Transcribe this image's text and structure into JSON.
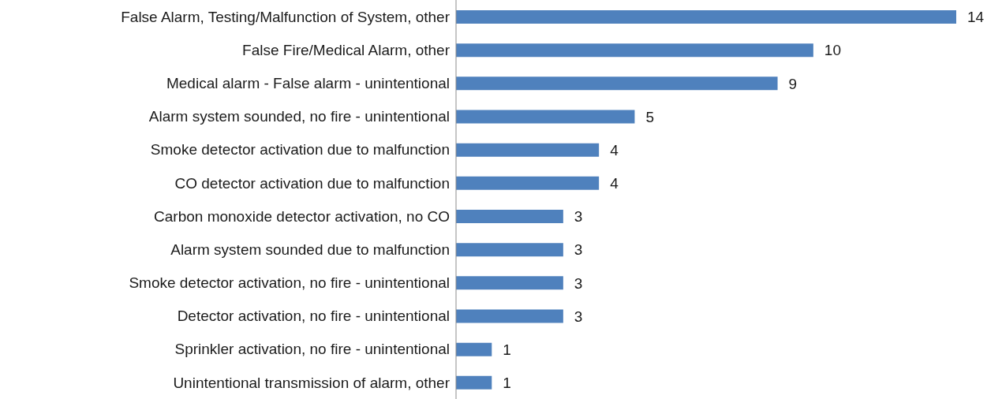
{
  "chart_data": {
    "type": "bar",
    "orientation": "horizontal",
    "data_labels": true,
    "color": "#4f81bd",
    "categories": [
      "False Alarm, Testing/Malfunction of System, other",
      "False Fire/Medical Alarm, other",
      "Medical alarm - False alarm - unintentional",
      "Alarm system sounded, no fire - unintentional",
      "Smoke detector activation due to malfunction",
      "CO detector activation due to malfunction",
      "Carbon monoxide detector activation, no CO",
      "Alarm system sounded due to malfunction",
      "Smoke detector activation, no fire - unintentional",
      "Detector activation, no fire - unintentional",
      "Sprinkler activation, no fire - unintentional",
      "Unintentional transmission of alarm, other"
    ],
    "values": [
      14,
      10,
      9,
      5,
      4,
      4,
      3,
      3,
      3,
      3,
      1,
      1
    ],
    "grid": false,
    "legend": false
  }
}
